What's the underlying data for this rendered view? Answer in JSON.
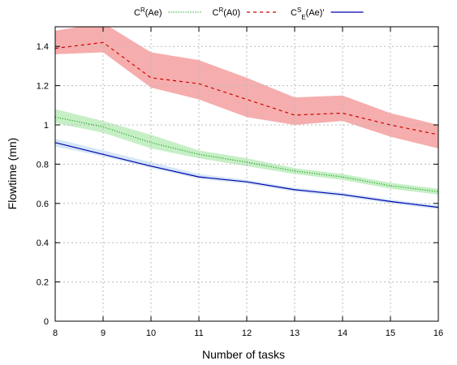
{
  "chart_data": {
    "type": "line",
    "xlabel": "Number of tasks",
    "ylabel": "Flowtime (mn)",
    "x": [
      8,
      9,
      10,
      11,
      12,
      13,
      14,
      15,
      16
    ],
    "xlim": [
      8,
      16
    ],
    "xticks": [
      8,
      9,
      10,
      11,
      12,
      13,
      14,
      15,
      16
    ],
    "ylim": [
      0,
      1.5
    ],
    "yticks": [
      0,
      0.2,
      0.4,
      0.6,
      0.8,
      1,
      1.2,
      1.4
    ],
    "grid": true,
    "legend": "top",
    "series": [
      {
        "name": [
          {
            "text": "C"
          },
          {
            "text": "R",
            "pos": "sup"
          },
          {
            "text": "(Ae)"
          }
        ],
        "color": "#009900",
        "band_color": "#c6efc6",
        "dash": "1,2",
        "values": [
          1.04,
          0.99,
          0.91,
          0.85,
          0.81,
          0.765,
          0.735,
          0.69,
          0.66
        ],
        "lower": [
          1.01,
          0.96,
          0.88,
          0.83,
          0.79,
          0.75,
          0.72,
          0.675,
          0.645
        ],
        "upper": [
          1.08,
          1.02,
          0.95,
          0.87,
          0.83,
          0.78,
          0.75,
          0.705,
          0.675
        ]
      },
      {
        "name": [
          {
            "text": "C"
          },
          {
            "text": "R",
            "pos": "sup"
          },
          {
            "text": "(A0)"
          }
        ],
        "color": "#cc0000",
        "band_color": "#f6adad",
        "dash": "4,4",
        "values": [
          1.39,
          1.42,
          1.24,
          1.21,
          1.13,
          1.05,
          1.06,
          1.0,
          0.95
        ],
        "lower": [
          1.36,
          1.37,
          1.19,
          1.13,
          1.04,
          1.0,
          1.02,
          0.94,
          0.88
        ],
        "upper": [
          1.48,
          1.52,
          1.37,
          1.33,
          1.24,
          1.14,
          1.15,
          1.06,
          1.0
        ]
      },
      {
        "name": [
          {
            "text": "C"
          },
          {
            "text": "S",
            "pos": "sup"
          },
          {
            "text": "E",
            "pos": "sub"
          },
          {
            "text": "(Ae)'"
          }
        ],
        "color": "#0000aa",
        "band_color": "#d4e6f7",
        "dash": "none",
        "values": [
          0.91,
          0.85,
          0.79,
          0.735,
          0.71,
          0.67,
          0.645,
          0.61,
          0.58
        ],
        "lower": [
          0.89,
          0.84,
          0.78,
          0.725,
          0.7,
          0.66,
          0.635,
          0.6,
          0.57
        ],
        "upper": [
          0.93,
          0.87,
          0.81,
          0.75,
          0.72,
          0.68,
          0.655,
          0.62,
          0.59
        ]
      }
    ]
  }
}
